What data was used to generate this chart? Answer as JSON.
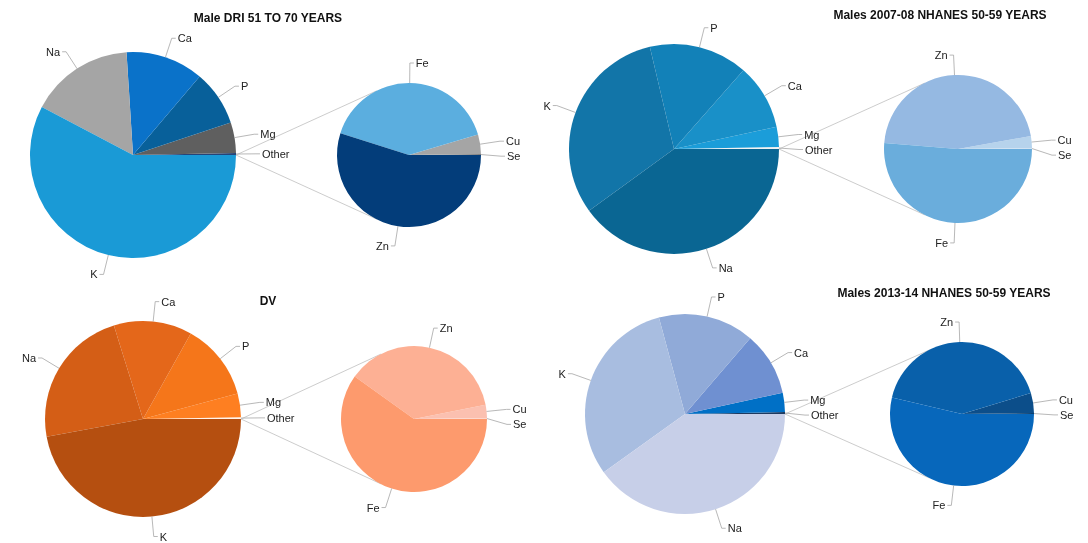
{
  "chart_data": [
    {
      "type": "pie",
      "title": "Male DRI 51 TO 70 YEARS",
      "categories": [
        "Other",
        "Mg",
        "P",
        "Ca",
        "Na",
        "K"
      ],
      "values": [
        0.3,
        4.8,
        8.7,
        12.2,
        16.3,
        57.7
      ],
      "colors": [
        "#264478",
        "#5f5f5f",
        "#08609a",
        "#0a72c9",
        "#a5a5a5",
        "#1a9ad6"
      ]
    },
    {
      "type": "pie",
      "categories": [
        "Se",
        "Cu",
        "Fe",
        "Zn"
      ],
      "values": [
        0.2,
        4.4,
        40.5,
        54.9
      ],
      "colors": [
        "#7f7f7f",
        "#a5a5a5",
        "#5baedf",
        "#033d7a"
      ]
    },
    {
      "type": "pie",
      "title": "Males 2007-08 NHANES 50-59 YEARS",
      "categories": [
        "Other",
        "Mg",
        "Ca",
        "P",
        "K",
        "Na"
      ],
      "values": [
        0.3,
        3.1,
        10.1,
        15.2,
        31.3,
        40.0
      ],
      "colors": [
        "#f2f2f2",
        "#1b9dd9",
        "#1990c8",
        "#1281b8",
        "#1275a8",
        "#0a6693"
      ]
    },
    {
      "type": "pie",
      "categories": [
        "Se",
        "Cu",
        "Zn",
        "Fe"
      ],
      "values": [
        0.2,
        2.6,
        45.9,
        51.3
      ],
      "colors": [
        "#cfe2f3",
        "#b6d3ec",
        "#95b9e2",
        "#6aaddc"
      ]
    },
    {
      "type": "pie",
      "title": "DV",
      "categories": [
        "Other",
        "Mg",
        "P",
        "Ca",
        "Na",
        "K"
      ],
      "values": [
        0.3,
        3.9,
        12.7,
        12.9,
        23.1,
        47.1
      ],
      "colors": [
        "#fff4ec",
        "#fe7f21",
        "#f5761a",
        "#e4671a",
        "#d45e16",
        "#b54f10"
      ]
    },
    {
      "type": "pie",
      "categories": [
        "Se",
        "Cu",
        "Zn",
        "Fe"
      ],
      "values": [
        0.2,
        2.9,
        37.0,
        59.9
      ],
      "colors": [
        "#fdd6cc",
        "#fbc0b0",
        "#fdb094",
        "#fd9a6d"
      ]
    },
    {
      "type": "pie",
      "title": "Males 2013-14 NHANES 50-59 YEARS",
      "categories": [
        "Other",
        "Mg",
        "Ca",
        "P",
        "K",
        "Na"
      ],
      "values": [
        0.3,
        3.1,
        10.3,
        15.5,
        30.7,
        40.1
      ],
      "colors": [
        "#1e3a60",
        "#0070c6",
        "#6f90d1",
        "#90aad8",
        "#a8bde0",
        "#c7cfe8"
      ]
    },
    {
      "type": "pie",
      "categories": [
        "Se",
        "Cu",
        "Zn",
        "Fe"
      ],
      "values": [
        0.2,
        4.5,
        41.6,
        53.7
      ],
      "colors": [
        "#0a3f70",
        "#0c4e8a",
        "#0960aa",
        "#0767bb"
      ]
    }
  ]
}
